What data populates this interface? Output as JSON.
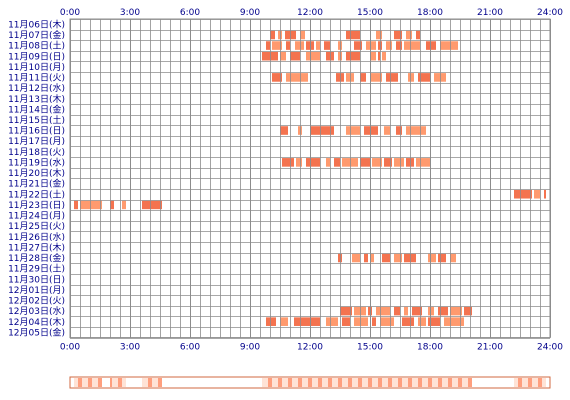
{
  "chart_data": {
    "type": "heatmap",
    "x_ticks": [
      "0:00",
      "3:00",
      "6:00",
      "9:00",
      "12:00",
      "15:00",
      "18:00",
      "21:00",
      "24:00"
    ],
    "x_range_hours": [
      0,
      24
    ],
    "rows": [
      {
        "label": "11月06日(木)",
        "intervals": []
      },
      {
        "label": "11月07日(金)",
        "intervals": [
          [
            10.0,
            10.25
          ],
          [
            10.4,
            10.6
          ],
          [
            10.75,
            11.3
          ],
          [
            11.5,
            11.75
          ],
          [
            13.8,
            14.5
          ],
          [
            15.3,
            15.6
          ],
          [
            16.2,
            16.6
          ],
          [
            16.8,
            17.1
          ],
          [
            17.3,
            17.5
          ]
        ]
      },
      {
        "label": "11月08日(土)",
        "intervals": [
          [
            9.8,
            10.0
          ],
          [
            10.1,
            10.6
          ],
          [
            10.8,
            11.0
          ],
          [
            11.25,
            11.7
          ],
          [
            11.8,
            12.2
          ],
          [
            12.3,
            12.5
          ],
          [
            12.7,
            13.0
          ],
          [
            13.4,
            13.6
          ],
          [
            14.2,
            14.6
          ],
          [
            14.8,
            15.3
          ],
          [
            15.4,
            15.6
          ],
          [
            15.8,
            16.1
          ],
          [
            16.3,
            16.6
          ],
          [
            16.7,
            17.5
          ],
          [
            17.8,
            18.3
          ],
          [
            18.5,
            19.4
          ]
        ]
      },
      {
        "label": "11月09日(日)",
        "intervals": [
          [
            9.6,
            10.4
          ],
          [
            10.5,
            10.8
          ],
          [
            11.0,
            11.5
          ],
          [
            11.8,
            12.5
          ],
          [
            12.8,
            13.2
          ],
          [
            13.4,
            13.6
          ],
          [
            13.8,
            14.5
          ],
          [
            15.0,
            15.3
          ],
          [
            15.4,
            15.5
          ],
          [
            15.6,
            15.8
          ]
        ]
      },
      {
        "label": "11月10日(月)",
        "intervals": []
      },
      {
        "label": "11月11日(火)",
        "intervals": [
          [
            10.1,
            10.6
          ],
          [
            10.8,
            11.9
          ],
          [
            13.3,
            13.7
          ],
          [
            13.8,
            14.2
          ],
          [
            14.5,
            14.8
          ],
          [
            15.0,
            15.6
          ],
          [
            15.8,
            16.4
          ],
          [
            16.9,
            17.2
          ],
          [
            17.4,
            18.0
          ],
          [
            18.2,
            18.8
          ]
        ]
      },
      {
        "label": "11月12日(水)",
        "intervals": []
      },
      {
        "label": "11月13日(木)",
        "intervals": []
      },
      {
        "label": "11月14日(金)",
        "intervals": []
      },
      {
        "label": "11月15日(土)",
        "intervals": []
      },
      {
        "label": "11月16日(日)",
        "intervals": [
          [
            10.5,
            10.9
          ],
          [
            11.4,
            11.6
          ],
          [
            12.0,
            13.2
          ],
          [
            13.8,
            14.5
          ],
          [
            14.7,
            15.4
          ],
          [
            15.7,
            16.0
          ],
          [
            16.3,
            16.6
          ],
          [
            16.8,
            17.8
          ]
        ]
      },
      {
        "label": "11月17日(月)",
        "intervals": []
      },
      {
        "label": "11月18日(火)",
        "intervals": []
      },
      {
        "label": "11月19日(水)",
        "intervals": [
          [
            10.6,
            11.2
          ],
          [
            11.3,
            11.6
          ],
          [
            11.8,
            12.5
          ],
          [
            12.8,
            13.0
          ],
          [
            13.2,
            13.5
          ],
          [
            13.6,
            14.4
          ],
          [
            14.5,
            15.0
          ],
          [
            15.1,
            15.6
          ],
          [
            15.7,
            16.1
          ],
          [
            16.2,
            16.7
          ],
          [
            16.8,
            17.2
          ],
          [
            17.3,
            18.0
          ]
        ]
      },
      {
        "label": "11月20日(木)",
        "intervals": []
      },
      {
        "label": "11月21日(金)",
        "intervals": []
      },
      {
        "label": "11月22日(土)",
        "intervals": [
          [
            22.2,
            23.1
          ],
          [
            23.2,
            23.5
          ],
          [
            23.7,
            23.8
          ]
        ]
      },
      {
        "label": "11月23日(日)",
        "intervals": [
          [
            0.2,
            0.4
          ],
          [
            0.5,
            1.6
          ],
          [
            2.0,
            2.2
          ],
          [
            2.6,
            2.8
          ],
          [
            3.6,
            4.6
          ]
        ]
      },
      {
        "label": "11月24日(月)",
        "intervals": []
      },
      {
        "label": "11月25日(火)",
        "intervals": []
      },
      {
        "label": "11月26日(水)",
        "intervals": []
      },
      {
        "label": "11月27日(木)",
        "intervals": []
      },
      {
        "label": "11月28日(金)",
        "intervals": [
          [
            13.4,
            13.6
          ],
          [
            14.1,
            14.5
          ],
          [
            14.7,
            14.9
          ],
          [
            15.0,
            15.2
          ],
          [
            15.6,
            16.0
          ],
          [
            16.2,
            16.6
          ],
          [
            16.7,
            17.3
          ],
          [
            17.9,
            18.3
          ],
          [
            18.4,
            18.8
          ],
          [
            19.0,
            19.3
          ]
        ]
      },
      {
        "label": "11月29日(土)",
        "intervals": []
      },
      {
        "label": "11月30日(日)",
        "intervals": []
      },
      {
        "label": "12月01日(月)",
        "intervals": []
      },
      {
        "label": "12月02日(火)",
        "intervals": []
      },
      {
        "label": "12月03日(水)",
        "intervals": [
          [
            13.5,
            14.1
          ],
          [
            14.2,
            14.8
          ],
          [
            14.9,
            15.1
          ],
          [
            15.3,
            16.0
          ],
          [
            16.2,
            16.5
          ],
          [
            16.7,
            16.9
          ],
          [
            17.1,
            17.6
          ],
          [
            17.9,
            18.2
          ],
          [
            18.4,
            18.9
          ],
          [
            19.0,
            19.6
          ],
          [
            19.7,
            20.1
          ]
        ]
      },
      {
        "label": "12月04日(木)",
        "intervals": [
          [
            9.8,
            10.3
          ],
          [
            10.5,
            10.9
          ],
          [
            11.2,
            12.5
          ],
          [
            12.8,
            13.4
          ],
          [
            13.6,
            14.0
          ],
          [
            14.2,
            14.9
          ],
          [
            15.1,
            15.3
          ],
          [
            15.5,
            16.2
          ],
          [
            16.6,
            17.2
          ],
          [
            17.4,
            17.8
          ],
          [
            17.9,
            18.5
          ],
          [
            18.7,
            19.7
          ]
        ]
      },
      {
        "label": "12月05日(金)",
        "intervals": []
      }
    ],
    "summary_strip_intervals": [
      [
        0.2,
        1.6
      ],
      [
        2.0,
        2.8
      ],
      [
        3.6,
        4.6
      ],
      [
        9.6,
        20.1
      ],
      [
        22.2,
        23.8
      ]
    ],
    "colors": {
      "bar": "#f4734f",
      "bar_light": "#ff9a6e",
      "grid": "#8c8c8c",
      "label": "#00008b",
      "strip_border": "#d06a40",
      "strip_light": "#ffe3d6",
      "strip_strong": "#ff9f7e"
    }
  }
}
